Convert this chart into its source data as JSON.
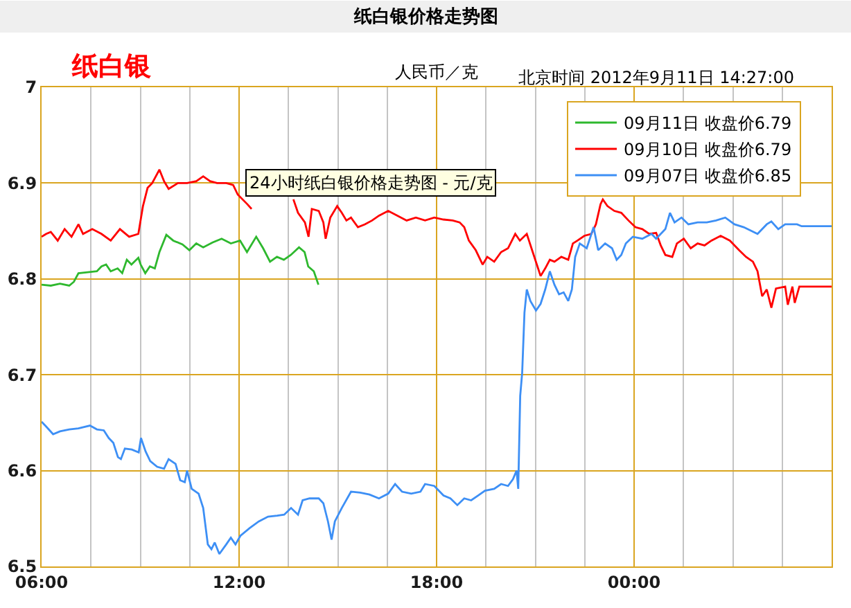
{
  "chart_data": {
    "type": "line",
    "title": "纸白银价格走势图",
    "subtitle": "纸白银",
    "ylabel": "人民币／克",
    "annotations": [
      "北京时间 2012年9月11日 14:27:00",
      "24小时纸白银价格走势图 - 元/克"
    ],
    "xlim": [
      6,
      30
    ],
    "xticks": [
      {
        "value": 6,
        "label": "06:00"
      },
      {
        "value": 7.5,
        "label": null
      },
      {
        "value": 9,
        "label": null
      },
      {
        "value": 10.5,
        "label": null
      },
      {
        "value": 12,
        "label": "12:00"
      },
      {
        "value": 13.5,
        "label": null
      },
      {
        "value": 15,
        "label": null
      },
      {
        "value": 16.5,
        "label": null
      },
      {
        "value": 18,
        "label": "18:00"
      },
      {
        "value": 19.5,
        "label": null
      },
      {
        "value": 21,
        "label": null
      },
      {
        "value": 22.5,
        "label": null
      },
      {
        "value": 24,
        "label": "00:00"
      },
      {
        "value": 25.5,
        "label": null
      },
      {
        "value": 27,
        "label": null
      },
      {
        "value": 28.5,
        "label": null
      }
    ],
    "ylim": [
      6.5,
      7
    ],
    "yticks": [
      6.5,
      6.6,
      6.7,
      6.8,
      6.9,
      7
    ],
    "grid": true,
    "legend": "top right",
    "series": [
      {
        "name": "09月11日 收盘价6.79",
        "color": "#2eb82e",
        "x": [
          6.0,
          6.28,
          6.56,
          6.84,
          6.98,
          7.12,
          7.4,
          7.68,
          7.82,
          7.96,
          8.1,
          8.31,
          8.45,
          8.59,
          8.73,
          8.94,
          9.01,
          9.15,
          9.29,
          9.44,
          9.58,
          9.79,
          10.0,
          10.28,
          10.49,
          10.7,
          10.91,
          11.19,
          11.47,
          11.75,
          12.03,
          12.24,
          12.52,
          12.73,
          12.94,
          13.15,
          13.36,
          13.57,
          13.82,
          13.99,
          14.1,
          14.27,
          14.41
        ],
        "values": [
          6.794,
          6.793,
          6.795,
          6.793,
          6.797,
          6.806,
          6.807,
          6.808,
          6.813,
          6.815,
          6.808,
          6.811,
          6.806,
          6.82,
          6.815,
          6.822,
          6.815,
          6.806,
          6.813,
          6.811,
          6.828,
          6.846,
          6.84,
          6.836,
          6.83,
          6.837,
          6.833,
          6.838,
          6.842,
          6.837,
          6.84,
          6.828,
          6.844,
          6.832,
          6.818,
          6.823,
          6.82,
          6.825,
          6.833,
          6.828,
          6.813,
          6.808,
          6.794
        ]
      },
      {
        "name": "09月10日 收盘价6.79",
        "color": "#ff0000",
        "x": [
          6.0,
          6.14,
          6.28,
          6.49,
          6.7,
          6.91,
          7.12,
          7.26,
          7.54,
          7.82,
          8.1,
          8.38,
          8.66,
          8.94,
          9.08,
          9.22,
          9.36,
          9.58,
          9.72,
          9.86,
          10.14,
          10.42,
          10.7,
          10.91,
          11.12,
          11.33,
          11.61,
          11.82,
          11.96,
          12.25,
          12.38,
          13.0,
          13.65,
          13.79,
          14.0,
          14.11,
          14.21,
          14.42,
          14.56,
          14.63,
          14.77,
          14.98,
          15.12,
          15.26,
          15.4,
          15.61,
          15.82,
          16.04,
          16.25,
          16.53,
          16.81,
          17.09,
          17.37,
          17.65,
          17.93,
          18.21,
          18.49,
          18.7,
          18.84,
          18.98,
          19.19,
          19.4,
          19.54,
          19.75,
          19.96,
          20.17,
          20.39,
          20.53,
          20.74,
          20.95,
          21.16,
          21.3,
          21.44,
          21.58,
          21.79,
          22.0,
          22.14,
          22.28,
          22.49,
          22.7,
          22.84,
          22.98,
          23.05,
          23.19,
          23.4,
          23.61,
          23.83,
          24.04,
          24.25,
          24.46,
          24.67,
          24.81,
          24.95,
          25.16,
          25.3,
          25.51,
          25.72,
          25.93,
          26.14,
          26.35,
          26.63,
          26.91,
          27.19,
          27.4,
          27.61,
          27.75,
          27.89,
          28.03,
          28.17,
          28.31,
          28.59,
          28.67,
          28.81,
          28.88,
          29.02,
          30.0
        ],
        "values": [
          6.844,
          6.847,
          6.849,
          6.84,
          6.852,
          6.844,
          6.857,
          6.847,
          6.852,
          6.847,
          6.84,
          6.852,
          6.844,
          6.847,
          6.876,
          6.895,
          6.9,
          6.914,
          6.902,
          6.894,
          6.9,
          6.9,
          6.902,
          6.907,
          6.902,
          6.9,
          6.9,
          6.898,
          6.888,
          6.878,
          6.873,
          null,
          6.883,
          6.869,
          6.859,
          6.844,
          6.873,
          6.871,
          6.859,
          6.842,
          6.864,
          6.876,
          6.869,
          6.861,
          6.864,
          6.854,
          6.857,
          6.861,
          6.866,
          6.871,
          6.866,
          6.861,
          6.864,
          6.861,
          6.864,
          6.862,
          6.861,
          6.859,
          6.854,
          6.84,
          6.83,
          6.815,
          6.823,
          6.818,
          6.828,
          6.832,
          6.847,
          6.84,
          6.847,
          6.825,
          6.803,
          6.811,
          6.82,
          6.818,
          6.823,
          6.82,
          6.837,
          6.84,
          6.845,
          6.847,
          6.857,
          6.878,
          6.883,
          6.876,
          6.871,
          6.869,
          6.861,
          6.854,
          6.852,
          6.847,
          6.848,
          6.835,
          6.825,
          6.823,
          6.837,
          6.842,
          6.832,
          6.837,
          6.835,
          6.84,
          6.845,
          6.84,
          6.83,
          6.823,
          6.818,
          6.808,
          6.782,
          6.789,
          6.77,
          6.79,
          6.792,
          6.773,
          6.792,
          6.775,
          6.792,
          6.792
        ]
      },
      {
        "name": "09月07日 收盘价6.85",
        "color": "#3d8ff5",
        "x": [
          6.0,
          6.14,
          6.35,
          6.56,
          6.84,
          7.12,
          7.47,
          7.68,
          7.89,
          8.04,
          8.18,
          8.32,
          8.41,
          8.53,
          8.74,
          8.95,
          9.02,
          9.16,
          9.3,
          9.51,
          9.72,
          9.86,
          10.07,
          10.21,
          10.35,
          10.42,
          10.56,
          10.77,
          10.91,
          11.05,
          11.16,
          11.26,
          11.4,
          11.61,
          11.75,
          11.89,
          12.04,
          12.32,
          12.6,
          12.88,
          13.16,
          13.37,
          13.58,
          13.79,
          13.93,
          14.14,
          14.42,
          14.56,
          14.7,
          14.81,
          14.91,
          15.12,
          15.4,
          15.68,
          15.96,
          16.25,
          16.53,
          16.74,
          16.95,
          17.23,
          17.51,
          17.65,
          17.93,
          18.21,
          18.42,
          18.63,
          18.84,
          19.05,
          19.26,
          19.47,
          19.75,
          19.96,
          20.17,
          20.32,
          20.43,
          20.48,
          20.54,
          20.6,
          20.67,
          20.74,
          20.85,
          21.02,
          21.16,
          21.3,
          21.44,
          21.58,
          21.72,
          21.86,
          22.0,
          22.11,
          22.21,
          22.35,
          22.56,
          22.77,
          22.91,
          23.12,
          23.33,
          23.47,
          23.61,
          23.75,
          23.96,
          24.25,
          24.53,
          24.67,
          24.95,
          25.09,
          25.23,
          25.44,
          25.65,
          25.93,
          26.21,
          26.49,
          26.77,
          27.05,
          27.33,
          27.75,
          28.03,
          28.17,
          28.38,
          28.59,
          28.95,
          29.09,
          30.0
        ],
        "values": [
          6.651,
          6.646,
          6.638,
          6.641,
          6.643,
          6.644,
          6.647,
          6.643,
          6.642,
          6.634,
          6.629,
          6.614,
          6.612,
          6.623,
          6.622,
          6.619,
          6.634,
          6.62,
          6.61,
          6.604,
          6.602,
          6.612,
          6.607,
          6.59,
          6.588,
          6.6,
          6.581,
          6.576,
          6.561,
          6.523,
          6.518,
          6.525,
          6.513,
          6.523,
          6.53,
          6.523,
          6.532,
          6.54,
          6.547,
          6.552,
          6.553,
          6.554,
          6.561,
          6.554,
          6.569,
          6.571,
          6.571,
          6.566,
          6.547,
          6.528,
          6.547,
          6.561,
          6.578,
          6.577,
          6.575,
          6.571,
          6.576,
          6.586,
          6.578,
          6.576,
          6.578,
          6.586,
          6.584,
          6.574,
          6.571,
          6.564,
          6.571,
          6.569,
          6.574,
          6.579,
          6.581,
          6.586,
          6.584,
          6.591,
          6.6,
          6.581,
          6.678,
          6.702,
          6.765,
          6.789,
          6.777,
          6.767,
          6.774,
          6.789,
          6.808,
          6.794,
          6.784,
          6.786,
          6.777,
          6.789,
          6.823,
          6.837,
          6.832,
          6.854,
          6.83,
          6.837,
          6.832,
          6.82,
          6.825,
          6.837,
          6.844,
          6.842,
          6.847,
          6.842,
          6.852,
          6.869,
          6.859,
          6.864,
          6.857,
          6.859,
          6.859,
          6.861,
          6.864,
          6.857,
          6.854,
          6.847,
          6.857,
          6.86,
          6.852,
          6.857,
          6.857,
          6.855,
          6.855
        ]
      }
    ]
  }
}
